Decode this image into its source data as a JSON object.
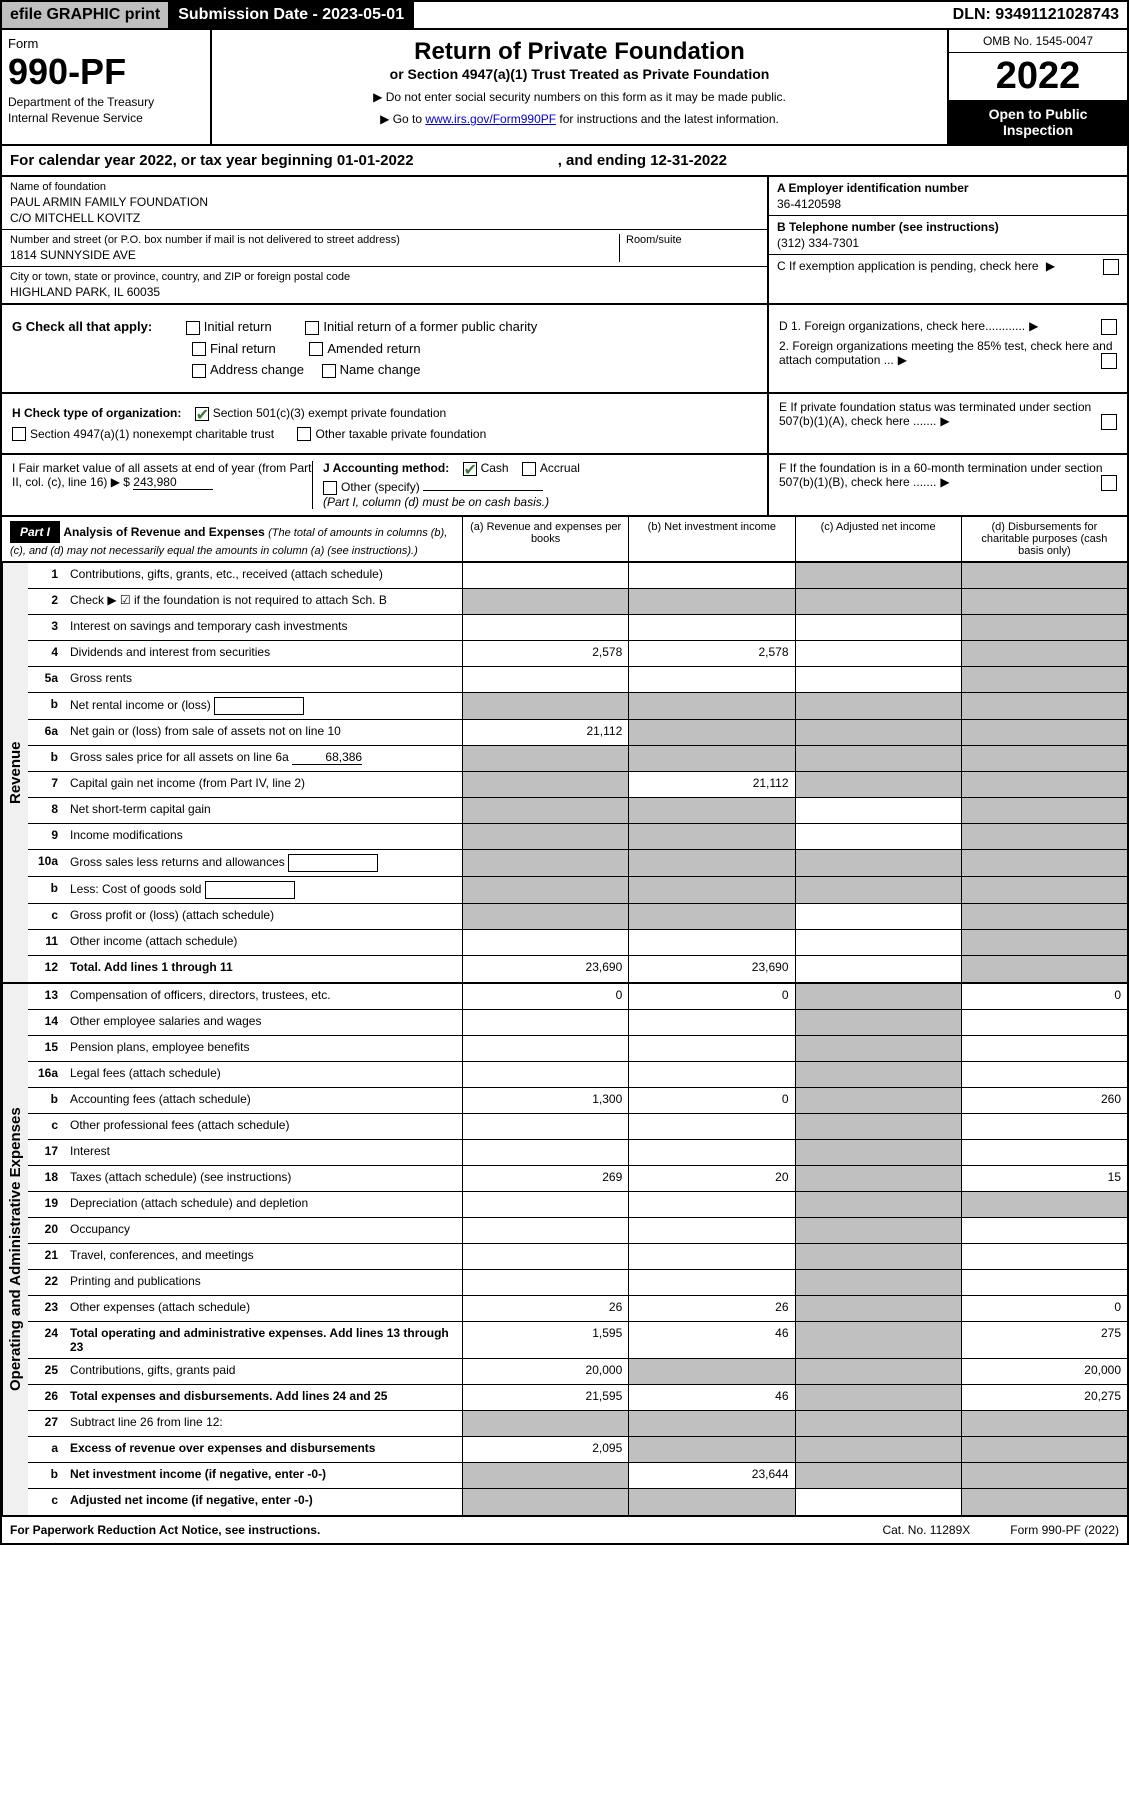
{
  "top": {
    "efile": "efile GRAPHIC print",
    "sub_date_label": "Submission Date - 2023-05-01",
    "dln": "DLN: 93491121028743"
  },
  "header": {
    "form_label": "Form",
    "form_num": "990-PF",
    "dept": "Department of the Treasury",
    "irs": "Internal Revenue Service",
    "title": "Return of Private Foundation",
    "subtitle": "or Section 4947(a)(1) Trust Treated as Private Foundation",
    "instr1": "▶ Do not enter social security numbers on this form as it may be made public.",
    "instr2_prefix": "▶ Go to ",
    "instr2_link": "www.irs.gov/Form990PF",
    "instr2_suffix": " for instructions and the latest information.",
    "omb": "OMB No. 1545-0047",
    "year": "2022",
    "open_public": "Open to Public Inspection"
  },
  "cal_year": {
    "prefix": "For calendar year 2022, or tax year beginning ",
    "begin": "01-01-2022",
    "mid": " , and ending ",
    "end": "12-31-2022"
  },
  "id": {
    "name_label": "Name of foundation",
    "name1": "PAUL ARMIN FAMILY FOUNDATION",
    "name2": "C/O MITCHELL KOVITZ",
    "addr_label": "Number and street (or P.O. box number if mail is not delivered to street address)",
    "addr": "1814 SUNNYSIDE AVE",
    "room_label": "Room/suite",
    "city_label": "City or town, state or province, country, and ZIP or foreign postal code",
    "city": "HIGHLAND PARK, IL  60035",
    "ein_label": "A Employer identification number",
    "ein": "36-4120598",
    "phone_label": "B Telephone number (see instructions)",
    "phone": "(312) 334-7301",
    "c_label": "C If exemption application is pending, check here",
    "d1": "D 1. Foreign organizations, check here............",
    "d2": "2. Foreign organizations meeting the 85% test, check here and attach computation ...",
    "e_label": "E If private foundation status was terminated under section 507(b)(1)(A), check here .......",
    "f_label": "F If the foundation is in a 60-month termination under section 507(b)(1)(B), check here ......."
  },
  "g": {
    "label": "G Check all that apply:",
    "initial": "Initial return",
    "initial_former": "Initial return of a former public charity",
    "final": "Final return",
    "amended": "Amended return",
    "addr_change": "Address change",
    "name_change": "Name change"
  },
  "h": {
    "label": "H Check type of organization:",
    "501c3": "Section 501(c)(3) exempt private foundation",
    "4947": "Section 4947(a)(1) nonexempt charitable trust",
    "other_taxable": "Other taxable private foundation"
  },
  "i": {
    "label": "I Fair market value of all assets at end of year (from Part II, col. (c), line 16) ▶ $",
    "value": "243,980"
  },
  "j": {
    "label": "J Accounting method:",
    "cash": "Cash",
    "accrual": "Accrual",
    "other": "Other (specify)",
    "note": "(Part I, column (d) must be on cash basis.)"
  },
  "part1": {
    "label": "Part I",
    "title": "Analysis of Revenue and Expenses",
    "desc": "(The total of amounts in columns (b), (c), and (d) may not necessarily equal the amounts in column (a) (see instructions).)",
    "col_a": "(a) Revenue and expenses per books",
    "col_b": "(b) Net investment income",
    "col_c": "(c) Adjusted net income",
    "col_d": "(d) Disbursements for charitable purposes (cash basis only)"
  },
  "sides": {
    "revenue": "Revenue",
    "expenses": "Operating and Administrative Expenses"
  },
  "rows": [
    {
      "n": "1",
      "label": "Contributions, gifts, grants, etc., received (attach schedule)",
      "a": "",
      "b": "",
      "c": "shade",
      "d": "shade"
    },
    {
      "n": "2",
      "label": "Check ▶ ☑ if the foundation is not required to attach Sch. B",
      "a": "shade",
      "b": "shade",
      "c": "shade",
      "d": "shade",
      "bold": false
    },
    {
      "n": "3",
      "label": "Interest on savings and temporary cash investments",
      "a": "",
      "b": "",
      "c": "",
      "d": "shade"
    },
    {
      "n": "4",
      "label": "Dividends and interest from securities",
      "a": "2,578",
      "b": "2,578",
      "c": "",
      "d": "shade"
    },
    {
      "n": "5a",
      "label": "Gross rents",
      "a": "",
      "b": "",
      "c": "",
      "d": "shade"
    },
    {
      "n": "b",
      "label": "Net rental income or (loss)",
      "a": "shade",
      "b": "shade",
      "c": "shade",
      "d": "shade",
      "inline": true
    },
    {
      "n": "6a",
      "label": "Net gain or (loss) from sale of assets not on line 10",
      "a": "21,112",
      "b": "shade",
      "c": "shade",
      "d": "shade"
    },
    {
      "n": "b",
      "label": "Gross sales price for all assets on line 6a",
      "a": "shade",
      "b": "shade",
      "c": "shade",
      "d": "shade",
      "inline_val": "68,386"
    },
    {
      "n": "7",
      "label": "Capital gain net income (from Part IV, line 2)",
      "a": "shade",
      "b": "21,112",
      "c": "shade",
      "d": "shade"
    },
    {
      "n": "8",
      "label": "Net short-term capital gain",
      "a": "shade",
      "b": "shade",
      "c": "",
      "d": "shade"
    },
    {
      "n": "9",
      "label": "Income modifications",
      "a": "shade",
      "b": "shade",
      "c": "",
      "d": "shade"
    },
    {
      "n": "10a",
      "label": "Gross sales less returns and allowances",
      "a": "shade",
      "b": "shade",
      "c": "shade",
      "d": "shade",
      "inline": true
    },
    {
      "n": "b",
      "label": "Less: Cost of goods sold",
      "a": "shade",
      "b": "shade",
      "c": "shade",
      "d": "shade",
      "inline": true
    },
    {
      "n": "c",
      "label": "Gross profit or (loss) (attach schedule)",
      "a": "shade",
      "b": "shade",
      "c": "",
      "d": "shade"
    },
    {
      "n": "11",
      "label": "Other income (attach schedule)",
      "a": "",
      "b": "",
      "c": "",
      "d": "shade"
    },
    {
      "n": "12",
      "label": "Total. Add lines 1 through 11",
      "a": "23,690",
      "b": "23,690",
      "c": "",
      "d": "shade",
      "bold": true
    }
  ],
  "exp_rows": [
    {
      "n": "13",
      "label": "Compensation of officers, directors, trustees, etc.",
      "a": "0",
      "b": "0",
      "c": "shade",
      "d": "0"
    },
    {
      "n": "14",
      "label": "Other employee salaries and wages",
      "a": "",
      "b": "",
      "c": "shade",
      "d": ""
    },
    {
      "n": "15",
      "label": "Pension plans, employee benefits",
      "a": "",
      "b": "",
      "c": "shade",
      "d": ""
    },
    {
      "n": "16a",
      "label": "Legal fees (attach schedule)",
      "a": "",
      "b": "",
      "c": "shade",
      "d": ""
    },
    {
      "n": "b",
      "label": "Accounting fees (attach schedule)",
      "a": "1,300",
      "b": "0",
      "c": "shade",
      "d": "260"
    },
    {
      "n": "c",
      "label": "Other professional fees (attach schedule)",
      "a": "",
      "b": "",
      "c": "shade",
      "d": ""
    },
    {
      "n": "17",
      "label": "Interest",
      "a": "",
      "b": "",
      "c": "shade",
      "d": ""
    },
    {
      "n": "18",
      "label": "Taxes (attach schedule) (see instructions)",
      "a": "269",
      "b": "20",
      "c": "shade",
      "d": "15"
    },
    {
      "n": "19",
      "label": "Depreciation (attach schedule) and depletion",
      "a": "",
      "b": "",
      "c": "shade",
      "d": "shade"
    },
    {
      "n": "20",
      "label": "Occupancy",
      "a": "",
      "b": "",
      "c": "shade",
      "d": ""
    },
    {
      "n": "21",
      "label": "Travel, conferences, and meetings",
      "a": "",
      "b": "",
      "c": "shade",
      "d": ""
    },
    {
      "n": "22",
      "label": "Printing and publications",
      "a": "",
      "b": "",
      "c": "shade",
      "d": ""
    },
    {
      "n": "23",
      "label": "Other expenses (attach schedule)",
      "a": "26",
      "b": "26",
      "c": "shade",
      "d": "0"
    },
    {
      "n": "24",
      "label": "Total operating and administrative expenses. Add lines 13 through 23",
      "a": "1,595",
      "b": "46",
      "c": "shade",
      "d": "275",
      "bold": true
    },
    {
      "n": "25",
      "label": "Contributions, gifts, grants paid",
      "a": "20,000",
      "b": "shade",
      "c": "shade",
      "d": "20,000"
    },
    {
      "n": "26",
      "label": "Total expenses and disbursements. Add lines 24 and 25",
      "a": "21,595",
      "b": "46",
      "c": "shade",
      "d": "20,275",
      "bold": true
    },
    {
      "n": "27",
      "label": "Subtract line 26 from line 12:",
      "a": "shade",
      "b": "shade",
      "c": "shade",
      "d": "shade"
    },
    {
      "n": "a",
      "label": "Excess of revenue over expenses and disbursements",
      "a": "2,095",
      "b": "shade",
      "c": "shade",
      "d": "shade",
      "bold": true
    },
    {
      "n": "b",
      "label": "Net investment income (if negative, enter -0-)",
      "a": "shade",
      "b": "23,644",
      "c": "shade",
      "d": "shade",
      "bold": true
    },
    {
      "n": "c",
      "label": "Adjusted net income (if negative, enter -0-)",
      "a": "shade",
      "b": "shade",
      "c": "",
      "d": "shade",
      "bold": true
    }
  ],
  "footer": {
    "left": "For Paperwork Reduction Act Notice, see instructions.",
    "mid": "Cat. No. 11289X",
    "right": "Form 990-PF (2022)"
  }
}
